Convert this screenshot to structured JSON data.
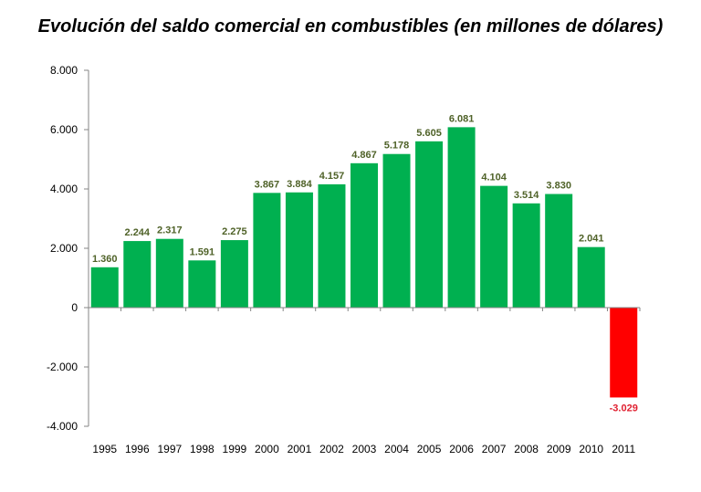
{
  "chart_data": {
    "type": "bar",
    "title": "Evolución del saldo comercial en combustibles (en millones de dólares)",
    "xlabel": "",
    "ylabel": "",
    "categories": [
      "1995",
      "1996",
      "1997",
      "1998",
      "1999",
      "2000",
      "2001",
      "2002",
      "2003",
      "2004",
      "2005",
      "2006",
      "2007",
      "2008",
      "2009",
      "2010",
      "2011"
    ],
    "values": [
      1360,
      2244,
      2317,
      1591,
      2275,
      3867,
      3884,
      4157,
      4867,
      5178,
      5605,
      6081,
      4104,
      3514,
      3830,
      2041,
      -3029
    ],
    "data_labels": [
      "1.360",
      "2.244",
      "2.317",
      "1.591",
      "2.275",
      "3.867",
      "3.884",
      "4.157",
      "4.867",
      "5.178",
      "5.605",
      "6.081",
      "4.104",
      "3.514",
      "3.830",
      "2.041",
      "-3.029"
    ],
    "ylim": [
      -4000,
      8000
    ],
    "yticks": [
      8000,
      6000,
      4000,
      2000,
      0,
      -2000,
      -4000
    ],
    "ytick_labels": [
      "8.000",
      "6.000",
      "4.000",
      "2.000",
      "0",
      "-2.000",
      "-4.000"
    ],
    "grid": false,
    "legend": "none",
    "colors": {
      "positive": "#00b050",
      "negative": "#ff0000",
      "positive_label": "#4f6228",
      "negative_label": "#e02030",
      "axis": "#868686"
    }
  }
}
